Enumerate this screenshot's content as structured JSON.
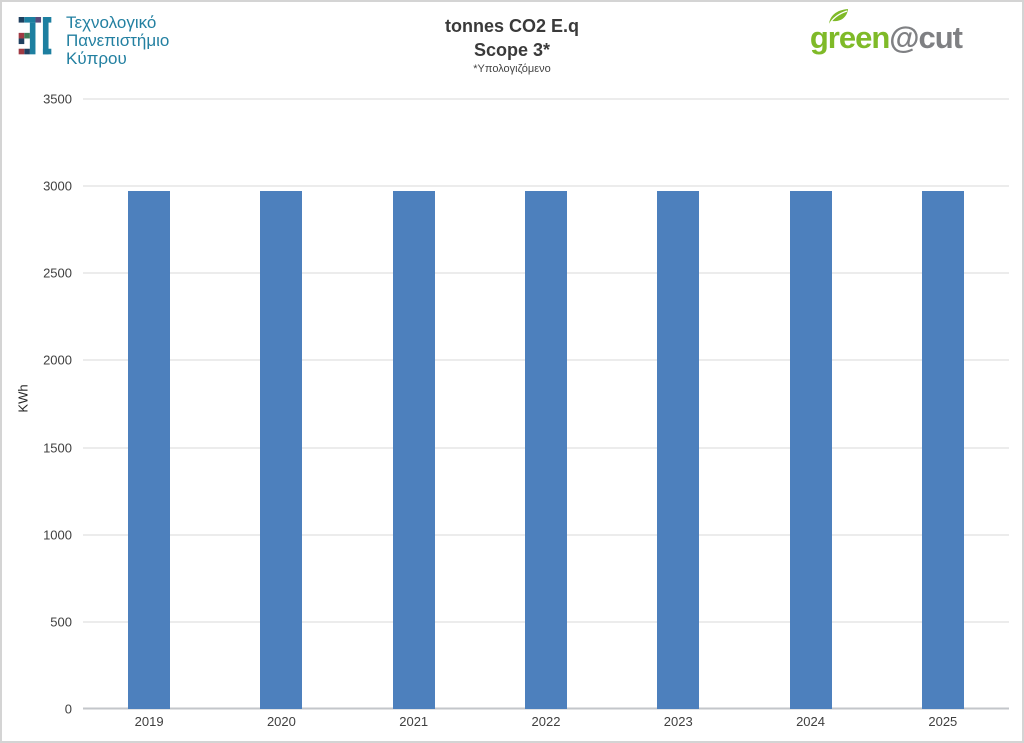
{
  "header": {
    "university": {
      "line1": "Τεχνολογικό",
      "line2": "Πανεπιστήμιο",
      "line3": "Κύπρου"
    },
    "brand": {
      "green_part": "green",
      "gray_part": "@cut"
    }
  },
  "chart_data": {
    "type": "bar",
    "title": "tonnes CO2 E.q",
    "subtitle": "Scope 3*",
    "footnote": "*Υπολογιζόμενο",
    "xlabel": "",
    "ylabel": "KWh",
    "categories": [
      "2019",
      "2020",
      "2021",
      "2022",
      "2023",
      "2024",
      "2025"
    ],
    "values": [
      2970,
      2970,
      2970,
      2970,
      2970,
      2970,
      2970
    ],
    "ylim": [
      0,
      3500
    ],
    "ytick_step": 500,
    "grid": true,
    "legend": "none",
    "bar_color": "#4d80bd"
  },
  "colors": {
    "bar": "#4d80bd",
    "gridline": "#d9d9d9",
    "axis_text": "#404040",
    "title_text": "#3a3a3a",
    "university_teal": "#2380a1",
    "brand_green": "#7fba28",
    "brand_gray": "#7f8083"
  }
}
